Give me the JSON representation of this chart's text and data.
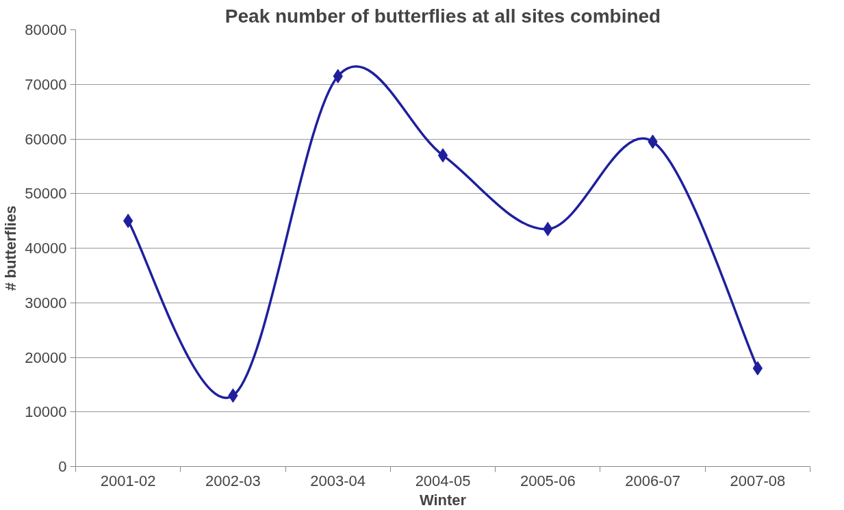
{
  "chart_data": {
    "type": "line",
    "title": "Peak number of butterflies at all sites combined",
    "xlabel": "Winter",
    "ylabel": "# butterflies",
    "categories": [
      "2001-02",
      "2002-03",
      "2003-04",
      "2004-05",
      "2005-06",
      "2006-07",
      "2007-08"
    ],
    "series": [
      {
        "color": "#1f1f9e",
        "values": [
          45000,
          13000,
          71500,
          57000,
          43500,
          59500,
          18000
        ]
      }
    ],
    "ylim": [
      0,
      80000
    ],
    "yticks": [
      0,
      10000,
      20000,
      30000,
      40000,
      50000,
      60000,
      70000,
      80000
    ],
    "grid": "y",
    "marker": "diamond",
    "line_style": "solid"
  }
}
